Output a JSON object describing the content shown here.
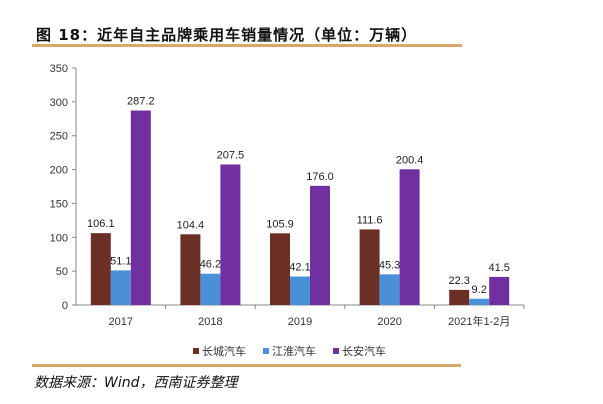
{
  "title": "图 18：近年自主品牌乘用车销量情况（单位：万辆）",
  "source": "数据来源：Wind，西南证券整理",
  "chart_data": {
    "type": "bar",
    "title": "图 18：近年自主品牌乘用车销量情况（单位：万辆）",
    "categories": [
      "2017",
      "2018",
      "2019",
      "2020",
      "2021年1-2月"
    ],
    "series": [
      {
        "name": "长城汽车",
        "color": "#6b2f25",
        "values": [
          106.1,
          104.4,
          105.9,
          111.6,
          22.3
        ]
      },
      {
        "name": "江淮汽车",
        "color": "#4a90d9",
        "values": [
          51.1,
          46.2,
          42.1,
          45.3,
          9.2
        ]
      },
      {
        "name": "长安汽车",
        "color": "#7030a0",
        "values": [
          287.2,
          207.5,
          176.0,
          200.4,
          41.5
        ]
      }
    ],
    "ylim": [
      0,
      350
    ],
    "yticks": [
      0,
      50,
      100,
      150,
      200,
      250,
      300,
      350
    ],
    "grid": false,
    "legend": "bottom"
  }
}
